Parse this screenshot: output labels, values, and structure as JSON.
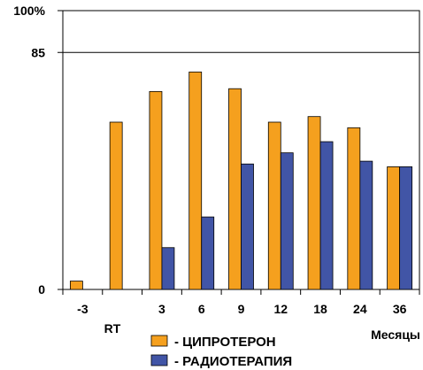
{
  "chart_data": {
    "type": "bar",
    "categories": [
      "-3",
      "",
      "3",
      "6",
      "9",
      "12",
      "18",
      "24",
      "36"
    ],
    "extra_label": "RT",
    "xlabel": "Месяцы",
    "ylabel": "",
    "ylim": [
      0,
      100
    ],
    "y_ticks": [
      {
        "value": 0,
        "label": "0"
      },
      {
        "value": 85,
        "label": "85"
      },
      {
        "value": 100,
        "label": "100%"
      }
    ],
    "reference_line": 85,
    "series": [
      {
        "name": "ЦИПРОТЕРОН",
        "legend_label": "- ЦИПРОТЕРОН",
        "color": "#f5a01e",
        "values": [
          3,
          60,
          71,
          78,
          72,
          60,
          62,
          58,
          44
        ]
      },
      {
        "name": "РАДИОТЕРАПИЯ",
        "legend_label": "- РАДИОТЕРАПИЯ",
        "color": "#4155a6",
        "values": [
          null,
          null,
          15,
          26,
          45,
          49,
          53,
          46,
          44
        ]
      }
    ],
    "legend_position": "bottom",
    "grid": false
  }
}
